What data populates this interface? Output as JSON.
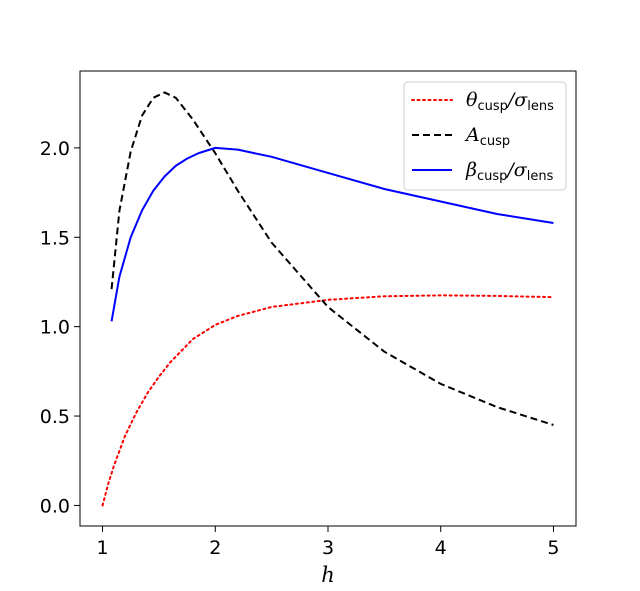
{
  "chart_data": {
    "type": "line",
    "title": "",
    "xlabel": "h",
    "ylabel": "",
    "xlim": [
      0.8,
      5.2
    ],
    "ylim": [
      -0.115,
      2.43
    ],
    "xticks": [
      1,
      2,
      3,
      4,
      5
    ],
    "xtick_labels": [
      "1",
      "2",
      "3",
      "4",
      "5"
    ],
    "yticks": [
      0.0,
      0.5,
      1.0,
      1.5,
      2.0
    ],
    "ytick_labels": [
      "0.0",
      "0.5",
      "1.0",
      "1.5",
      "2.0"
    ],
    "grid": false,
    "legend_position": "top-right",
    "series": [
      {
        "name": "θcusp/σlens",
        "legend_main": "θ",
        "legend_sub1": "cusp",
        "legend_sep": "/σ",
        "legend_sub2": "lens",
        "color": "#ff0000",
        "style": "dotted",
        "x": [
          1.0,
          1.05,
          1.1,
          1.2,
          1.3,
          1.4,
          1.5,
          1.6,
          1.8,
          2.0,
          2.2,
          2.5,
          3.0,
          3.5,
          4.0,
          4.5,
          5.0
        ],
        "y": [
          0.0,
          0.12,
          0.22,
          0.39,
          0.52,
          0.63,
          0.72,
          0.8,
          0.93,
          1.01,
          1.06,
          1.11,
          1.15,
          1.17,
          1.175,
          1.172,
          1.165
        ]
      },
      {
        "name": "Acusp",
        "legend_main": "A",
        "legend_sub1": "cusp",
        "legend_sep": "",
        "legend_sub2": "",
        "color": "#000000",
        "style": "dashed",
        "x": [
          1.08,
          1.15,
          1.25,
          1.35,
          1.45,
          1.55,
          1.65,
          1.8,
          2.0,
          2.2,
          2.5,
          3.0,
          3.5,
          4.0,
          4.5,
          5.0
        ],
        "y": [
          1.21,
          1.65,
          1.98,
          2.18,
          2.28,
          2.31,
          2.28,
          2.16,
          1.97,
          1.76,
          1.47,
          1.11,
          0.86,
          0.68,
          0.55,
          0.45
        ]
      },
      {
        "name": "βcusp/σlens",
        "legend_main": "β",
        "legend_sub1": "cusp",
        "legend_sep": "/σ",
        "legend_sub2": "lens",
        "color": "#0000ff",
        "style": "solid",
        "x": [
          1.08,
          1.15,
          1.25,
          1.35,
          1.45,
          1.55,
          1.65,
          1.75,
          1.85,
          2.0,
          2.2,
          2.5,
          3.0,
          3.5,
          4.0,
          4.5,
          5.0
        ],
        "y": [
          1.03,
          1.28,
          1.5,
          1.65,
          1.76,
          1.84,
          1.9,
          1.94,
          1.97,
          2.0,
          1.99,
          1.95,
          1.86,
          1.77,
          1.7,
          1.63,
          1.58
        ]
      }
    ]
  }
}
